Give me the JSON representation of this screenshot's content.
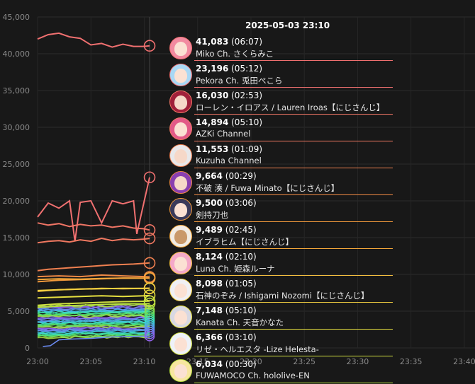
{
  "timestamp": "2025-05-03 23:10",
  "chart_data": {
    "type": "line",
    "ylim": [
      0,
      45000
    ],
    "yticks": [
      "0",
      "5,000",
      "10,000",
      "15,000",
      "20,000",
      "25,000",
      "30,000",
      "35,000",
      "40,000",
      "45,000"
    ],
    "ytick_values": [
      0,
      5000,
      10000,
      15000,
      20000,
      25000,
      30000,
      35000,
      40000,
      45000
    ],
    "xticks": [
      "23:00",
      "23:05",
      "23:10",
      "23:15",
      "23:20",
      "23:25",
      "23:30",
      "23:35",
      "23:40"
    ],
    "xtick_values": [
      0,
      5,
      10,
      15,
      20,
      25,
      30,
      35,
      40
    ],
    "xlim": [
      0,
      41
    ],
    "cursor_x": 10.5,
    "grid": true,
    "series": [
      {
        "name": "Miko Ch. さくらみこ",
        "color": "#f07070",
        "x": [
          0,
          1,
          2,
          3,
          4,
          5,
          6,
          7,
          8,
          9,
          10,
          10.5
        ],
        "values": [
          42000,
          42600,
          42800,
          42300,
          42100,
          41200,
          41400,
          40900,
          41300,
          41000,
          41000,
          41083
        ]
      },
      {
        "name": "Pekora Ch. 兎田ぺこら",
        "color": "#f07070",
        "x": [
          0,
          1,
          2,
          3,
          3.5,
          4,
          5,
          6,
          7,
          8,
          9,
          9.3,
          10,
          10.5
        ],
        "values": [
          17800,
          19700,
          19000,
          20000,
          14500,
          19800,
          20000,
          17000,
          20000,
          19600,
          20000,
          15500,
          20000,
          23196
        ]
      },
      {
        "name": "ローレン・イロアス / Lauren Iroas【にじさんじ】",
        "color": "#f07565",
        "x": [
          0,
          1,
          2,
          3,
          4,
          5,
          6,
          7,
          8,
          9,
          10,
          10.5
        ],
        "values": [
          17000,
          16700,
          16900,
          16500,
          16800,
          16600,
          16700,
          16400,
          16600,
          16300,
          16200,
          16030
        ]
      },
      {
        "name": "AZKi Channel",
        "color": "#f07860",
        "x": [
          0,
          1,
          2,
          3,
          4,
          5,
          6,
          7,
          8,
          9,
          10,
          10.5
        ],
        "values": [
          14300,
          14500,
          14600,
          14400,
          14700,
          14500,
          14900,
          14600,
          14800,
          14700,
          14800,
          14894
        ]
      },
      {
        "name": "Kuzuha Channel",
        "color": "#f08050",
        "x": [
          0,
          1,
          2,
          3,
          4,
          5,
          6,
          7,
          8,
          9,
          10,
          10.5
        ],
        "values": [
          10500,
          10700,
          10800,
          10900,
          11000,
          11100,
          11200,
          11300,
          11350,
          11400,
          11500,
          11553
        ]
      },
      {
        "name": "不破 湊 / Fuwa Minato【にじさんじ】",
        "color": "#f08a45",
        "x": [
          0,
          2,
          4,
          6,
          8,
          10,
          10.5
        ],
        "values": [
          9700,
          9800,
          9700,
          9900,
          9800,
          9700,
          9664
        ]
      },
      {
        "name": "剣持刀也",
        "color": "#f39a3c",
        "x": [
          0,
          2,
          4,
          6,
          8,
          10,
          10.5
        ],
        "values": [
          9000,
          9200,
          9300,
          9400,
          9500,
          9500,
          9500
        ]
      },
      {
        "name": "イブラヒム【にじさんじ】",
        "color": "#f5a83a",
        "x": [
          0,
          2,
          4,
          6,
          8,
          10,
          10.5
        ],
        "values": [
          9300,
          9400,
          9350,
          9450,
          9500,
          9480,
          9489
        ]
      },
      {
        "name": "Luna Ch. 姫森ルーナ",
        "color": "#f5c040",
        "x": [
          0,
          2,
          4,
          6,
          8,
          10,
          10.5
        ],
        "values": [
          7700,
          7900,
          8000,
          8100,
          8050,
          8100,
          8124
        ]
      },
      {
        "name": "石神のぞみ / Ishigami Nozomi【にじさんじ】",
        "color": "#f3d040",
        "x": [
          0,
          2,
          4,
          6,
          8,
          10,
          10.5
        ],
        "values": [
          7800,
          7900,
          8000,
          8050,
          8100,
          8090,
          8098
        ]
      },
      {
        "name": "Kanata Ch. 天音かなた",
        "color": "#e6e040",
        "x": [
          0,
          2,
          4,
          6,
          8,
          10,
          10.5
        ],
        "values": [
          6800,
          6900,
          7000,
          7100,
          7000,
          7100,
          7148
        ]
      },
      {
        "name": "リゼ・ヘルエスタ -Lize Helesta-",
        "color": "#d0e040",
        "x": [
          0,
          2,
          4,
          6,
          8,
          10,
          10.5
        ],
        "values": [
          5800,
          6000,
          6100,
          6200,
          6300,
          6350,
          6366
        ]
      },
      {
        "name": "FUWAMOCO Ch. hololive-EN",
        "color": "#b8e040",
        "x": [
          0,
          2,
          4,
          6,
          8,
          10,
          10.5
        ],
        "values": [
          5500,
          5700,
          5800,
          5900,
          6000,
          6000,
          6034
        ]
      }
    ]
  },
  "list": [
    {
      "value": "41,083",
      "time": "(06:07)",
      "name": "Miko Ch. さくらみこ",
      "color": "#f07070",
      "hair": "#f28aa0",
      "face": "#fbe1d3"
    },
    {
      "value": "23,196",
      "time": "(05:12)",
      "name": "Pekora Ch. 兎田ぺこら",
      "color": "#f07070",
      "hair": "#a9d8f5",
      "face": "#fbe1d3"
    },
    {
      "value": "16,030",
      "time": "(02:53)",
      "name": "ローレン・イロアス / Lauren Iroas【にじさんじ】",
      "color": "#f07565",
      "hair": "#a0203a",
      "face": "#f6d8c8"
    },
    {
      "value": "14,894",
      "time": "(05:10)",
      "name": "AZKi Channel",
      "color": "#f07860",
      "hair": "#e25a88",
      "face": "#fbe1d3"
    },
    {
      "value": "11,553",
      "time": "(01:09)",
      "name": "Kuzuha Channel",
      "color": "#f08050",
      "hair": "#e8e8ea",
      "face": "#f6d8c8"
    },
    {
      "value": "9,664",
      "time": "(00:29)",
      "name": "不破 湊 / Fuwa Minato【にじさんじ】",
      "color": "#f08a45",
      "hair": "#8a3fb0",
      "face": "#f6d8c8"
    },
    {
      "value": "9,500",
      "time": "(03:06)",
      "name": "剣持刀也",
      "color": "#f39a3c",
      "hair": "#3a3a5a",
      "face": "#fbe1d3"
    },
    {
      "value": "9,489",
      "time": "(02:45)",
      "name": "イブラヒム【にじさんじ】",
      "color": "#f5a83a",
      "hair": "#f1ece4",
      "face": "#c9996a"
    },
    {
      "value": "8,124",
      "time": "(02:10)",
      "name": "Luna Ch. 姫森ルーナ",
      "color": "#f5c040",
      "hair": "#f5a9c8",
      "face": "#fbe1d3"
    },
    {
      "value": "8,098",
      "time": "(01:05)",
      "name": "石神のぞみ / Ishigami Nozomi【にじさんじ】",
      "color": "#f3d040",
      "hair": "#f0f0f4",
      "face": "#fbe1d3"
    },
    {
      "value": "7,148",
      "time": "(05:10)",
      "name": "Kanata Ch. 天音かなた",
      "color": "#e6e040",
      "hair": "#d8d8e2",
      "face": "#fbe1d3"
    },
    {
      "value": "6,366",
      "time": "(03:10)",
      "name": "リゼ・ヘルエスタ -Lize Helesta-",
      "color": "#d0e040",
      "hair": "#eef2f8",
      "face": "#fbe1d3"
    },
    {
      "value": "6,034",
      "time": "(00:30)",
      "name": "FUWAMOCO Ch. hololive-EN",
      "color": "#b8e040",
      "hair": "#f7e6a0",
      "face": "#fbe1d3"
    }
  ]
}
